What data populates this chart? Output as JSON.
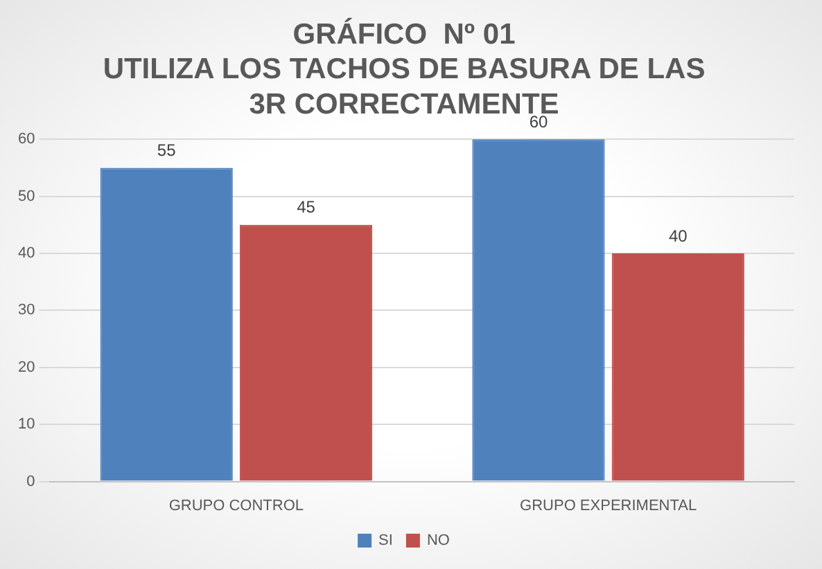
{
  "chart_data": {
    "type": "bar",
    "title": "GRÁFICO  Nº 01\nUTILIZA LOS TACHOS DE BASURA DE LAS\n3R CORRECTAMENTE",
    "categories": [
      "GRUPO CONTROL",
      "GRUPO EXPERIMENTAL"
    ],
    "series": [
      {
        "name": "SI",
        "color": "#4f81bd",
        "values": [
          55,
          60
        ]
      },
      {
        "name": "NO",
        "color": "#c0504d",
        "values": [
          45,
          40
        ]
      }
    ],
    "ylim": [
      0,
      60
    ],
    "yticks": [
      0,
      10,
      20,
      30,
      40,
      50,
      60
    ],
    "grid": "y",
    "legend": "bottom",
    "data_labels": true
  }
}
